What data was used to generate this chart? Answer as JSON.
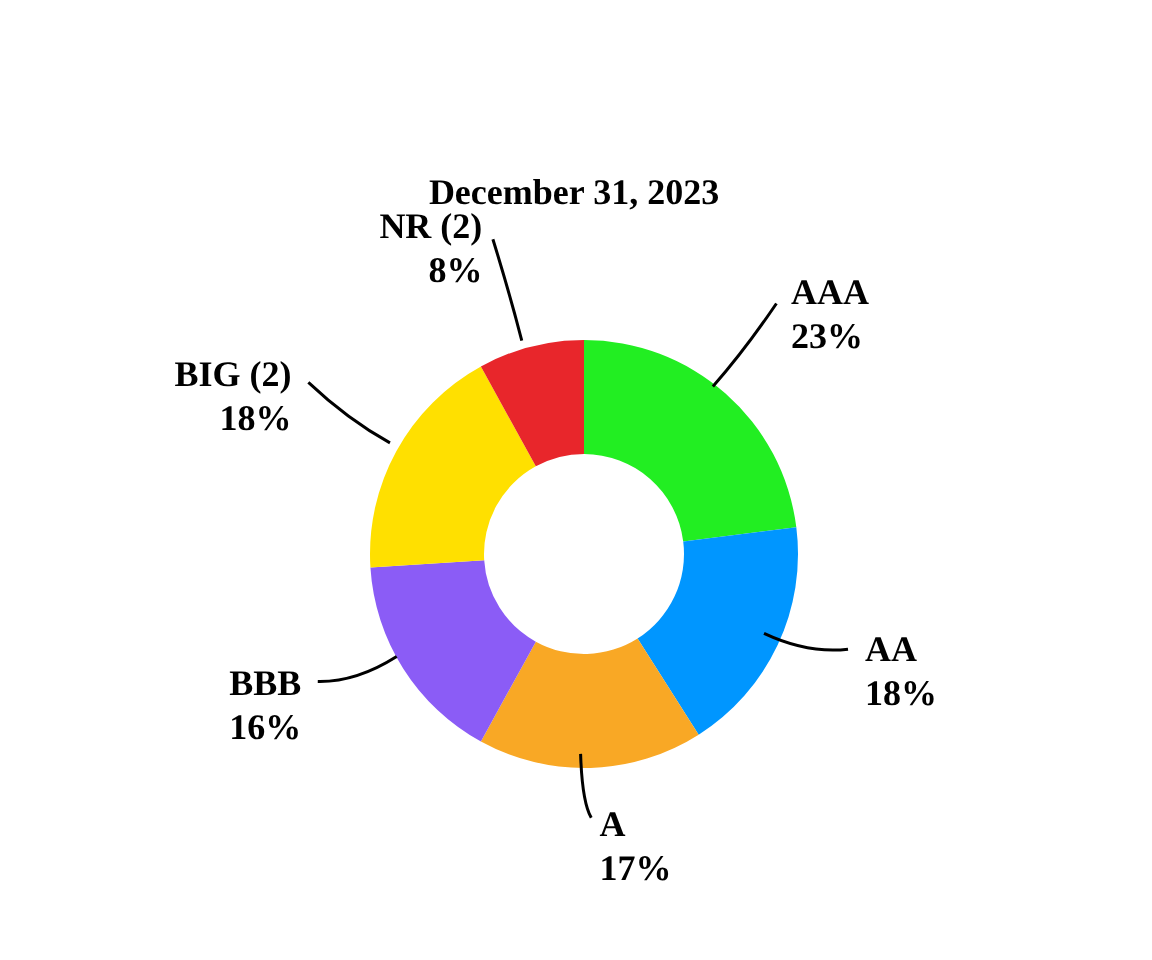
{
  "chart_data": {
    "type": "donut",
    "title": "December 31, 2023",
    "categories": [
      "AAA",
      "AA",
      "A",
      "BBB",
      "BIG (2)",
      "NR (2)"
    ],
    "values": [
      23,
      18,
      17,
      16,
      18,
      8
    ],
    "colors": [
      "#22ee22",
      "#0096ff",
      "#f9a825",
      "#8b5cf6",
      "#ffe000",
      "#e8262b"
    ],
    "value_labels": [
      "23%",
      "18%",
      "17%",
      "16%",
      "18%",
      "8%"
    ],
    "legend": false
  }
}
